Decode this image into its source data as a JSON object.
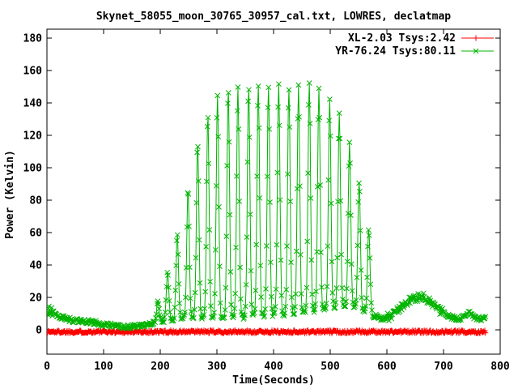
{
  "chart_data": {
    "type": "line",
    "title": "Skynet_58055_moon_30765_30957_cal.txt, LOWRES, declatmap",
    "xlabel": "Time(Seconds)",
    "ylabel": "Power (Kelvin)",
    "xlim": [
      0,
      800
    ],
    "ylim": [
      -15,
      185.5
    ],
    "x_ticks": [
      0,
      100,
      200,
      300,
      400,
      500,
      600,
      700,
      800
    ],
    "y_ticks": [
      0,
      20,
      40,
      60,
      80,
      100,
      120,
      140,
      160,
      180
    ],
    "grid": false,
    "legend_position": "top-right-inside",
    "background": "#ffffff",
    "axis_color": "#000000",
    "series": [
      {
        "name": "XL-2.03 Tsys:2.42",
        "color": "#ff0000",
        "marker": "plus",
        "t_start": 0,
        "t_end": 775,
        "sample_step": 1.2,
        "model": {
          "kind": "constant",
          "value": -1.2,
          "noise": 0.9
        }
      },
      {
        "name": "YR-76.24 Tsys:80.11",
        "color": "#00b400",
        "marker": "x",
        "t_start": 0,
        "t_end": 775,
        "sample_step": 1.2,
        "model": {
          "kind": "baseline-spikes",
          "spike_sigma": 2.2,
          "noise": 1.4,
          "noise_regions": [
            {
              "from": 0,
              "to": 14,
              "amp": 3.2
            },
            {
              "from": 600,
              "to": 700,
              "amp": 2.6
            }
          ],
          "baseline": [
            [
              0,
              12
            ],
            [
              8,
              11
            ],
            [
              14,
              9
            ],
            [
              22,
              8
            ],
            [
              32,
              7
            ],
            [
              45,
              6
            ],
            [
              60,
              5.5
            ],
            [
              75,
              5
            ],
            [
              90,
              4
            ],
            [
              105,
              3
            ],
            [
              120,
              2.5
            ],
            [
              135,
              2
            ],
            [
              152,
              2
            ],
            [
              165,
              2.5
            ],
            [
              180,
              3.5
            ],
            [
              192,
              4.5
            ],
            [
              205,
              5
            ],
            [
              216,
              5.5
            ],
            [
              228,
              6.5
            ],
            [
              240,
              7.5
            ],
            [
              255,
              8
            ],
            [
              270,
              7.5
            ],
            [
              290,
              7
            ],
            [
              310,
              7
            ],
            [
              330,
              7.5
            ],
            [
              350,
              8
            ],
            [
              370,
              8.5
            ],
            [
              390,
              9
            ],
            [
              410,
              9.5
            ],
            [
              430,
              10
            ],
            [
              448,
              10.5
            ],
            [
              465,
              11.5
            ],
            [
              480,
              12.5
            ],
            [
              495,
              13.5
            ],
            [
              510,
              14.5
            ],
            [
              525,
              15
            ],
            [
              540,
              14.5
            ],
            [
              552,
              13
            ],
            [
              565,
              10.5
            ],
            [
              578,
              8.5
            ],
            [
              592,
              7
            ],
            [
              604,
              8
            ],
            [
              615,
              11
            ],
            [
              626,
              14.5
            ],
            [
              637,
              17.5
            ],
            [
              648,
              19.5
            ],
            [
              658,
              20.5
            ],
            [
              666,
              21
            ],
            [
              674,
              18
            ],
            [
              682,
              15.5
            ],
            [
              692,
              12.5
            ],
            [
              702,
              10
            ],
            [
              712,
              8
            ],
            [
              722,
              7
            ],
            [
              730,
              6.5
            ],
            [
              738,
              8.5
            ],
            [
              744,
              10.5
            ],
            [
              750,
              9
            ],
            [
              757,
              7.5
            ],
            [
              764,
              6.5
            ],
            [
              772,
              7.5
            ]
          ],
          "spikes": [
            [
              196,
              18
            ],
            [
              213,
              36
            ],
            [
              230,
              58
            ],
            [
              249,
              87
            ],
            [
              266,
              116
            ],
            [
              284,
              133
            ],
            [
              301,
              144
            ],
            [
              320,
              149
            ],
            [
              337,
              150
            ],
            [
              356,
              151
            ],
            [
              373,
              152
            ],
            [
              391,
              151
            ],
            [
              409,
              152
            ],
            [
              427,
              150
            ],
            [
              444,
              151
            ],
            [
              463,
              152
            ],
            [
              480,
              150
            ],
            [
              499,
              143
            ],
            [
              516,
              133
            ],
            [
              534,
              116
            ],
            [
              551,
              92
            ],
            [
              568,
              62
            ]
          ]
        }
      }
    ]
  }
}
